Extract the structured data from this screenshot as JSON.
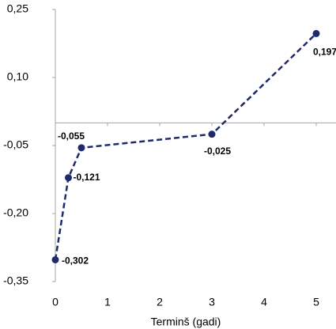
{
  "chart_data": {
    "type": "line",
    "x_label": "Terminš (gadi)",
    "x": [
      0,
      0.25,
      0.5,
      3,
      5
    ],
    "series": [
      {
        "color": "#1f2a6b",
        "values": [
          -0.302,
          -0.121,
          -0.055,
          -0.025,
          0.197
        ],
        "value_labels": [
          "-0,302",
          "-0,121",
          "-0,055",
          "-0,025",
          "0,197"
        ]
      }
    ],
    "xlim": [
      0,
      5
    ],
    "xticks": [
      0,
      1,
      2,
      3,
      4,
      5
    ],
    "ylim": [
      -0.35,
      0.25
    ],
    "yticks": [
      {
        "value": 0.25,
        "label": "0,25"
      },
      {
        "value": 0.1,
        "label": "0,10"
      },
      {
        "value": -0.05,
        "label": "-0,05"
      },
      {
        "value": -0.2,
        "label": "-0,20"
      },
      {
        "value": -0.35,
        "label": "-0,35"
      }
    ]
  }
}
